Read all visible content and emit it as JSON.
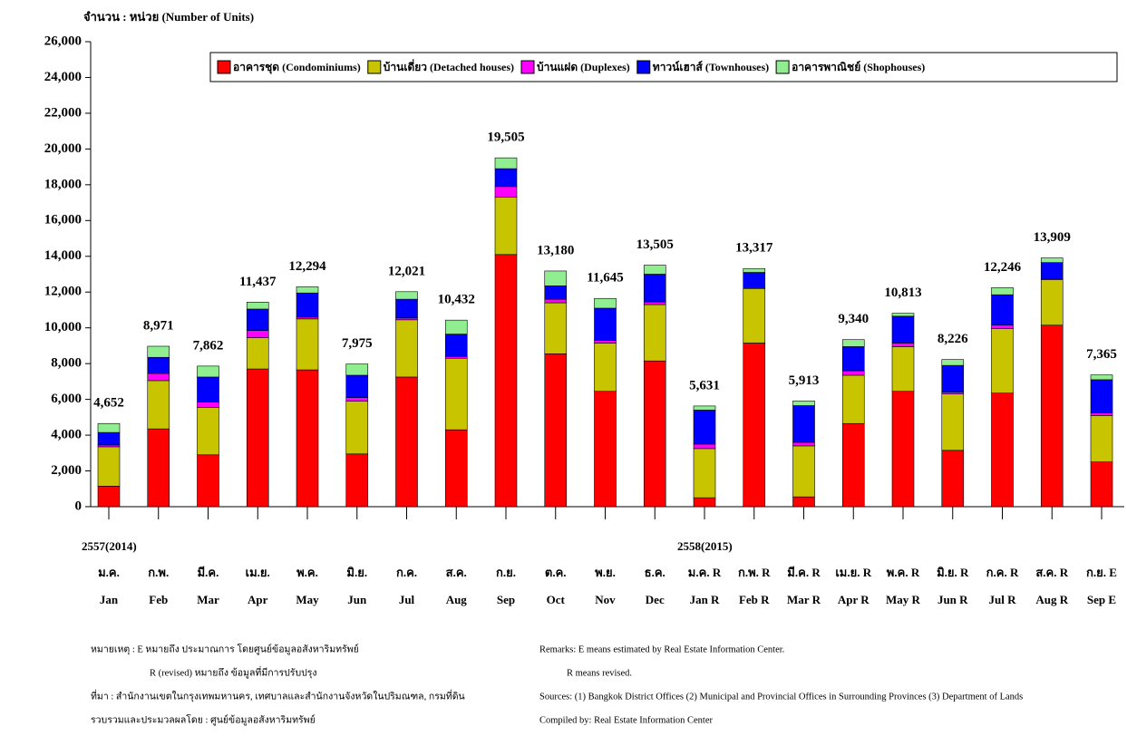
{
  "chart_data": {
    "type": "stacked_bar",
    "y_axis_label": "จำนวน : หน่วย (Number of Units)",
    "categories": [
      "Jan",
      "Feb",
      "Mar",
      "Apr",
      "May",
      "Jun",
      "Jul",
      "Aug",
      "Sep",
      "Oct",
      "Nov",
      "Dec",
      "Jan R",
      "Feb R",
      "Mar R",
      "Apr R",
      "May R",
      "Jun R",
      "Jul R",
      "Aug R",
      "Sep E"
    ],
    "categories_th": [
      "ม.ค.",
      "ก.พ.",
      "มี.ค.",
      "เม.ย.",
      "พ.ค.",
      "มิ.ย.",
      "ก.ค.",
      "ส.ค.",
      "ก.ย.",
      "ต.ค.",
      "พ.ย.",
      "ธ.ค.",
      "ม.ค. R",
      "ก.พ. R",
      "มี.ค. R",
      "เม.ย. R",
      "พ.ค. R",
      "มิ.ย. R",
      "ก.ค. R",
      "ส.ค. R",
      "ก.ย. E"
    ],
    "year_labels": [
      "2557(2014)",
      "2558(2015)"
    ],
    "series": [
      {
        "name": "อาคารชุด (Condominiums)",
        "color": "#ff0000",
        "values": [
          1150,
          4350,
          2900,
          7700,
          7650,
          2950,
          7250,
          4300,
          14100,
          8550,
          6450,
          8150,
          500,
          9150,
          550,
          4650,
          6450,
          3150,
          6350,
          10150,
          2500
        ]
      },
      {
        "name": "บ้านเดี่ยว (Detached houses)",
        "color": "#c8c400",
        "values": [
          2200,
          2700,
          2650,
          1750,
          2850,
          2950,
          3200,
          4000,
          3200,
          2850,
          2700,
          3150,
          2750,
          3050,
          2850,
          2700,
          2500,
          3150,
          3600,
          2550,
          2600
        ]
      },
      {
        "name": "บ้านแฝด (Duplexes)",
        "color": "#ff00ff",
        "values": [
          100,
          400,
          300,
          400,
          100,
          200,
          100,
          100,
          600,
          200,
          150,
          150,
          250,
          50,
          200,
          250,
          200,
          100,
          200,
          50,
          150
        ]
      },
      {
        "name": "ทาวน์เฮาส์ (Townhouses)",
        "color": "#0000ff",
        "values": [
          700,
          900,
          1400,
          1200,
          1350,
          1250,
          1050,
          1250,
          1000,
          750,
          1800,
          1550,
          1900,
          850,
          2050,
          1350,
          1500,
          1500,
          1700,
          900,
          1850
        ]
      },
      {
        "name": "อาคารพาณิชย์ (Shophouses)",
        "color": "#90ee90",
        "values": [
          502,
          621,
          612,
          387,
          344,
          625,
          421,
          782,
          605,
          830,
          545,
          505,
          231,
          217,
          263,
          390,
          163,
          326,
          396,
          259,
          265
        ]
      }
    ],
    "totals": {
      "values": [
        4652,
        8971,
        7862,
        11437,
        12294,
        7975,
        12021,
        10432,
        19505,
        13180,
        11645,
        13505,
        5631,
        13317,
        5913,
        9340,
        10813,
        8226,
        12246,
        13909,
        7365
      ],
      "value_labels": [
        "4,652",
        "8,971",
        "7,862",
        "11,437",
        "12,294",
        "7,975",
        "12,021",
        "10,432",
        "19,505",
        "13,180",
        "11,645",
        "13,505",
        "5,631",
        "13,317",
        "5,913",
        "9,340",
        "10,813",
        "8,226",
        "12,246",
        "13,909",
        "7,365"
      ]
    },
    "ylim": [
      0,
      26000
    ],
    "yticks": [
      0,
      {
        "value": 2000,
        "label": "2,000"
      },
      {
        "value": 4000,
        "label": "4,000"
      },
      {
        "value": 6000,
        "label": "6,000"
      },
      {
        "value": 8000,
        "label": "8,000"
      },
      {
        "value": 10000,
        "label": "10,000"
      },
      {
        "value": 12000,
        "label": "12,000"
      },
      {
        "value": 14000,
        "label": "14,000"
      },
      {
        "value": 16000,
        "label": "16,000"
      },
      {
        "value": 18000,
        "label": "18,000"
      },
      {
        "value": 20000,
        "label": "20,000"
      },
      {
        "value": 22000,
        "label": "22,000"
      },
      {
        "value": 24000,
        "label": "24,000"
      },
      {
        "value": 26000,
        "label": "26,000"
      }
    ],
    "grid": false,
    "legend": "top",
    "notes_th": [
      "หมายเหตุ : E  หมายถึง ประมาณการ  โดยศูนย์ข้อมูลอสังหาริมทรัพย์",
      "R (revised) หมายถึง ข้อมูลที่มีการปรับปรุง",
      "ที่มา : สำนักงานเขตในกรุงเทพมหานคร, เทศบาลและสำนักงานจังหวัดในปริมณฑล, กรมที่ดิน",
      "รวบรวมและประมวลผลโดย : ศูนย์ข้อมูลอสังหาริมทรัพย์"
    ],
    "notes_en": [
      "Remarks: E means estimated by Real Estate Information Center.",
      "R means revised.",
      "Sources: (1) Bangkok District Offices (2) Municipal and Provincial Offices in Surrounding Provinces (3) Department of Lands",
      "Compiled by: Real Estate Information Center"
    ]
  }
}
